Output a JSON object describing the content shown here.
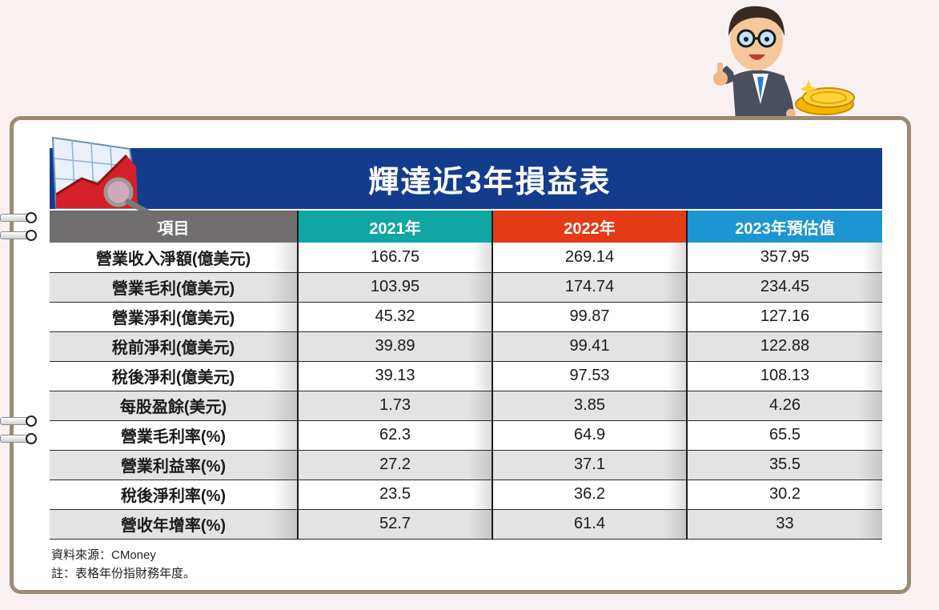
{
  "title": "輝達近3年損益表",
  "table": {
    "headers": [
      "項目",
      "2021年",
      "2022年",
      "2023年預估值"
    ],
    "header_colors": [
      "#6f6d6e",
      "#0fa6a3",
      "#e43a15",
      "#1d95d2"
    ],
    "rows": [
      [
        "營業收入淨額(億美元)",
        "166.75",
        "269.14",
        "357.95"
      ],
      [
        "營業毛利(億美元)",
        "103.95",
        "174.74",
        "234.45"
      ],
      [
        "營業淨利(億美元)",
        "45.32",
        "99.87",
        "127.16"
      ],
      [
        "稅前淨利(億美元)",
        "39.89",
        "99.41",
        "122.88"
      ],
      [
        "稅後淨利(億美元)",
        "39.13",
        "97.53",
        "108.13"
      ],
      [
        "每股盈餘(美元)",
        "1.73",
        "3.85",
        "4.26"
      ],
      [
        "營業毛利率(%)",
        "62.3",
        "64.9",
        "65.5"
      ],
      [
        "營業利益率(%)",
        "27.2",
        "37.1",
        "35.5"
      ],
      [
        "稅後淨利率(%)",
        "23.5",
        "36.2",
        "30.2"
      ],
      [
        "營收年增率(%)",
        "52.7",
        "61.4",
        "33"
      ]
    ]
  },
  "footer": {
    "source": "資料來源：CMoney",
    "note": "註：表格年份指財務年度。"
  },
  "icons": {
    "chart_icon": "growth-chart-magnifier-icon",
    "character": "businessman-thumbs-up",
    "coins": "gold-coins-icon"
  },
  "colors": {
    "title_bar": "#143c8c",
    "card_border": "#9c8b74",
    "background": "#f9f1f1"
  }
}
